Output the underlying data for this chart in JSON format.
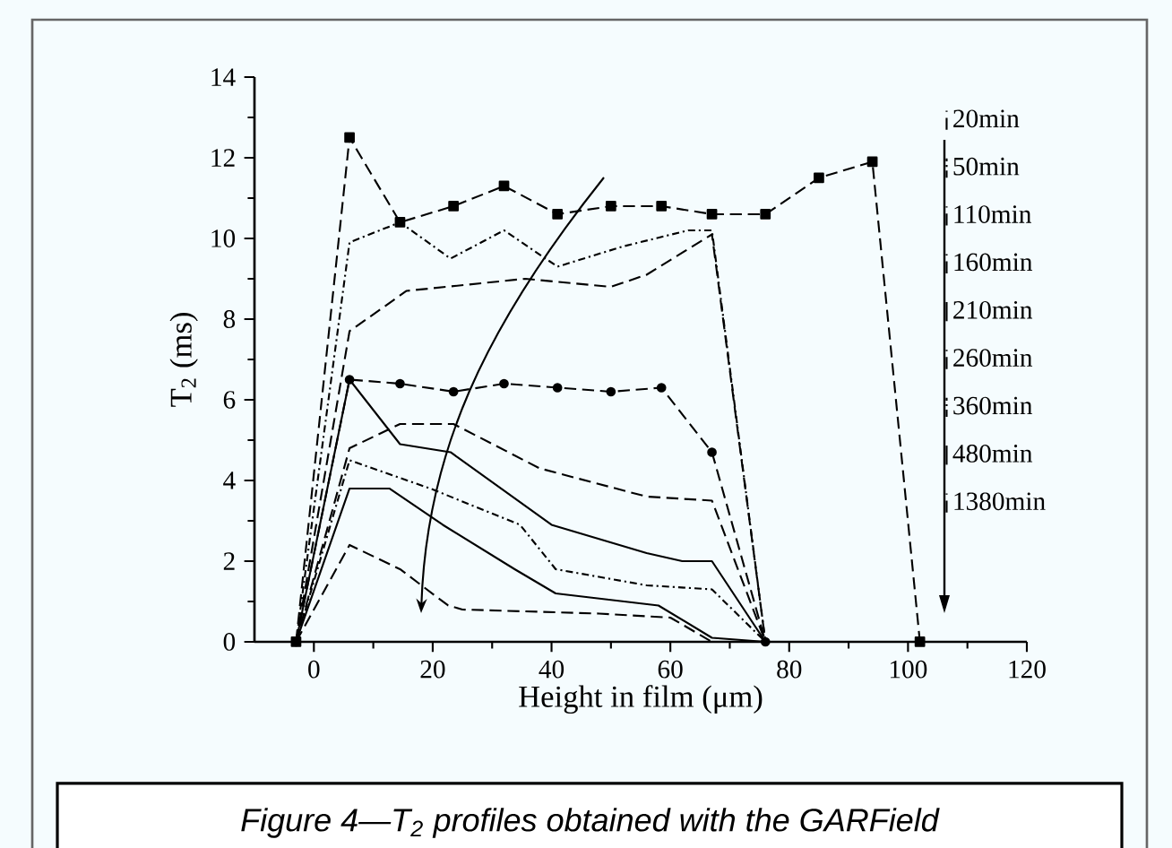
{
  "chart_data": {
    "type": "line",
    "xlabel": "Height in film (μm)",
    "ylabel": "T$_{2}$ (ms)",
    "xlim": [
      -10,
      120
    ],
    "xticks": [
      0,
      20,
      40,
      60,
      80,
      100,
      120
    ],
    "ylim": [
      0,
      14
    ],
    "yticks": [
      0,
      2,
      4,
      6,
      8,
      10,
      12,
      14
    ],
    "grid": false,
    "legend": "right",
    "annotations": [
      "Figure 4—T$_{2}$ profiles obtained with the GARField"
    ],
    "series": [
      {
        "name": "20min",
        "color": "#000000",
        "line_style": "dashed",
        "marker": "square",
        "x": [
          -3,
          6,
          14.5,
          23.5,
          32,
          41,
          50,
          58.5,
          67,
          76,
          85,
          94,
          102
        ],
        "values": [
          0,
          12.5,
          10.4,
          10.8,
          11.3,
          10.6,
          10.8,
          10.8,
          10.6,
          10.6,
          11.5,
          11.9,
          0
        ]
      },
      {
        "name": "50min",
        "color": "#000000",
        "line_style": "dotted",
        "x": [
          -3,
          6,
          14.5,
          23,
          32,
          41,
          52,
          63,
          67,
          76
        ],
        "values": [
          0,
          9.9,
          10.4,
          9.5,
          10.2,
          9.3,
          9.8,
          10.2,
          10.2,
          0
        ]
      },
      {
        "name": "110min",
        "color": "#000000",
        "line_style": "dashed",
        "x": [
          -3,
          6,
          15.6,
          35.6,
          50,
          56,
          67,
          76
        ],
        "values": [
          0,
          7.7,
          8.7,
          9.0,
          8.8,
          9.1,
          10.1,
          0
        ]
      },
      {
        "name": "160min",
        "color": "#000000",
        "line_style": "dashed",
        "marker": "circle",
        "x": [
          -3,
          6,
          14.5,
          23.5,
          32,
          41,
          50,
          58.5,
          67,
          76
        ],
        "values": [
          0,
          6.5,
          6.4,
          6.2,
          6.4,
          6.3,
          6.2,
          6.3,
          4.7,
          0
        ]
      },
      {
        "name": "210min",
        "color": "#000000",
        "line_style": "solid",
        "x": [
          -3,
          6,
          14.5,
          23,
          40,
          56,
          62,
          67,
          76
        ],
        "values": [
          0,
          6.5,
          4.9,
          4.7,
          2.9,
          2.2,
          2.0,
          2.0,
          0
        ]
      },
      {
        "name": "260min",
        "color": "#000000",
        "line_style": "dashed",
        "x": [
          -3,
          6,
          14.5,
          23.5,
          38,
          56,
          67,
          76
        ],
        "values": [
          0,
          4.8,
          5.4,
          5.4,
          4.3,
          3.6,
          3.5,
          0
        ]
      },
      {
        "name": "360min",
        "color": "#000000",
        "line_style": "dotted",
        "x": [
          -3,
          6,
          19.6,
          34.7,
          40.7,
          56,
          67,
          76
        ],
        "values": [
          0,
          4.5,
          3.8,
          2.9,
          1.8,
          1.4,
          1.3,
          0
        ]
      },
      {
        "name": "480min",
        "color": "#000000",
        "line_style": "solid",
        "x": [
          -3,
          6,
          12.7,
          21.7,
          33.8,
          40.7,
          58,
          67,
          76
        ],
        "values": [
          0,
          3.8,
          3.8,
          2.9,
          1.8,
          1.2,
          0.9,
          0.1,
          0
        ]
      },
      {
        "name": "1380min",
        "color": "#000000",
        "line_style": "dashed",
        "x": [
          -3,
          6,
          14.5,
          22.6,
          25,
          48,
          60,
          67
        ],
        "values": [
          0,
          2.4,
          1.8,
          0.9,
          0.8,
          0.7,
          0.6,
          0
        ]
      }
    ]
  }
}
